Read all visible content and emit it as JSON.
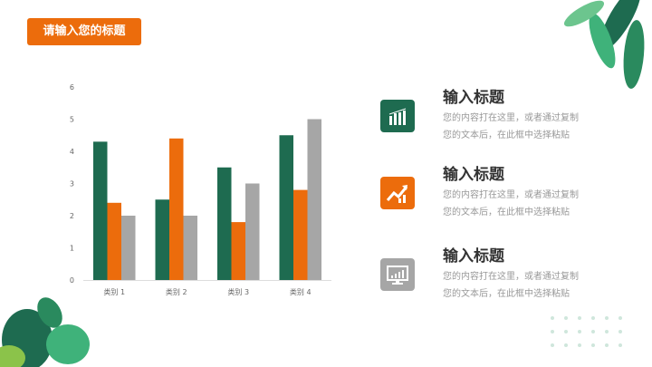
{
  "slide_title": "请输入您的标题",
  "colors": {
    "green": "#1e6b50",
    "orange": "#ec6c0c",
    "gray": "#a6a6a6"
  },
  "chart_data": {
    "type": "bar",
    "categories": [
      "类别 1",
      "类别 2",
      "类别 3",
      "类别 4"
    ],
    "series": [
      {
        "values": [
          4.3,
          2.5,
          3.5,
          4.5
        ],
        "color": "#1e6b50"
      },
      {
        "values": [
          2.4,
          4.4,
          1.8,
          2.8
        ],
        "color": "#ec6c0c"
      },
      {
        "values": [
          2,
          2,
          3,
          5
        ],
        "color": "#a6a6a6"
      }
    ],
    "yticks": [
      0,
      1,
      2,
      3,
      4,
      5,
      6
    ],
    "ylim": [
      0,
      6
    ],
    "grid": false,
    "legend": "none"
  },
  "items": [
    {
      "title": "输入标题",
      "line1": "您的内容打在这里，或者通过复制",
      "line2": "您的文本后，在此框中选择粘贴",
      "icon": "bar-chart-icon",
      "color": "#1e6b50"
    },
    {
      "title": "输入标题",
      "line1": "您的内容打在这里，或者通过复制",
      "line2": "您的文本后，在此框中选择粘贴",
      "icon": "trend-up-icon",
      "color": "#ec6c0c"
    },
    {
      "title": "输入标题",
      "line1": "您的内容打在这里，或者通过复制",
      "line2": "您的文本后，在此框中选择粘贴",
      "icon": "monitor-chart-icon",
      "color": "#a6a6a6"
    }
  ]
}
